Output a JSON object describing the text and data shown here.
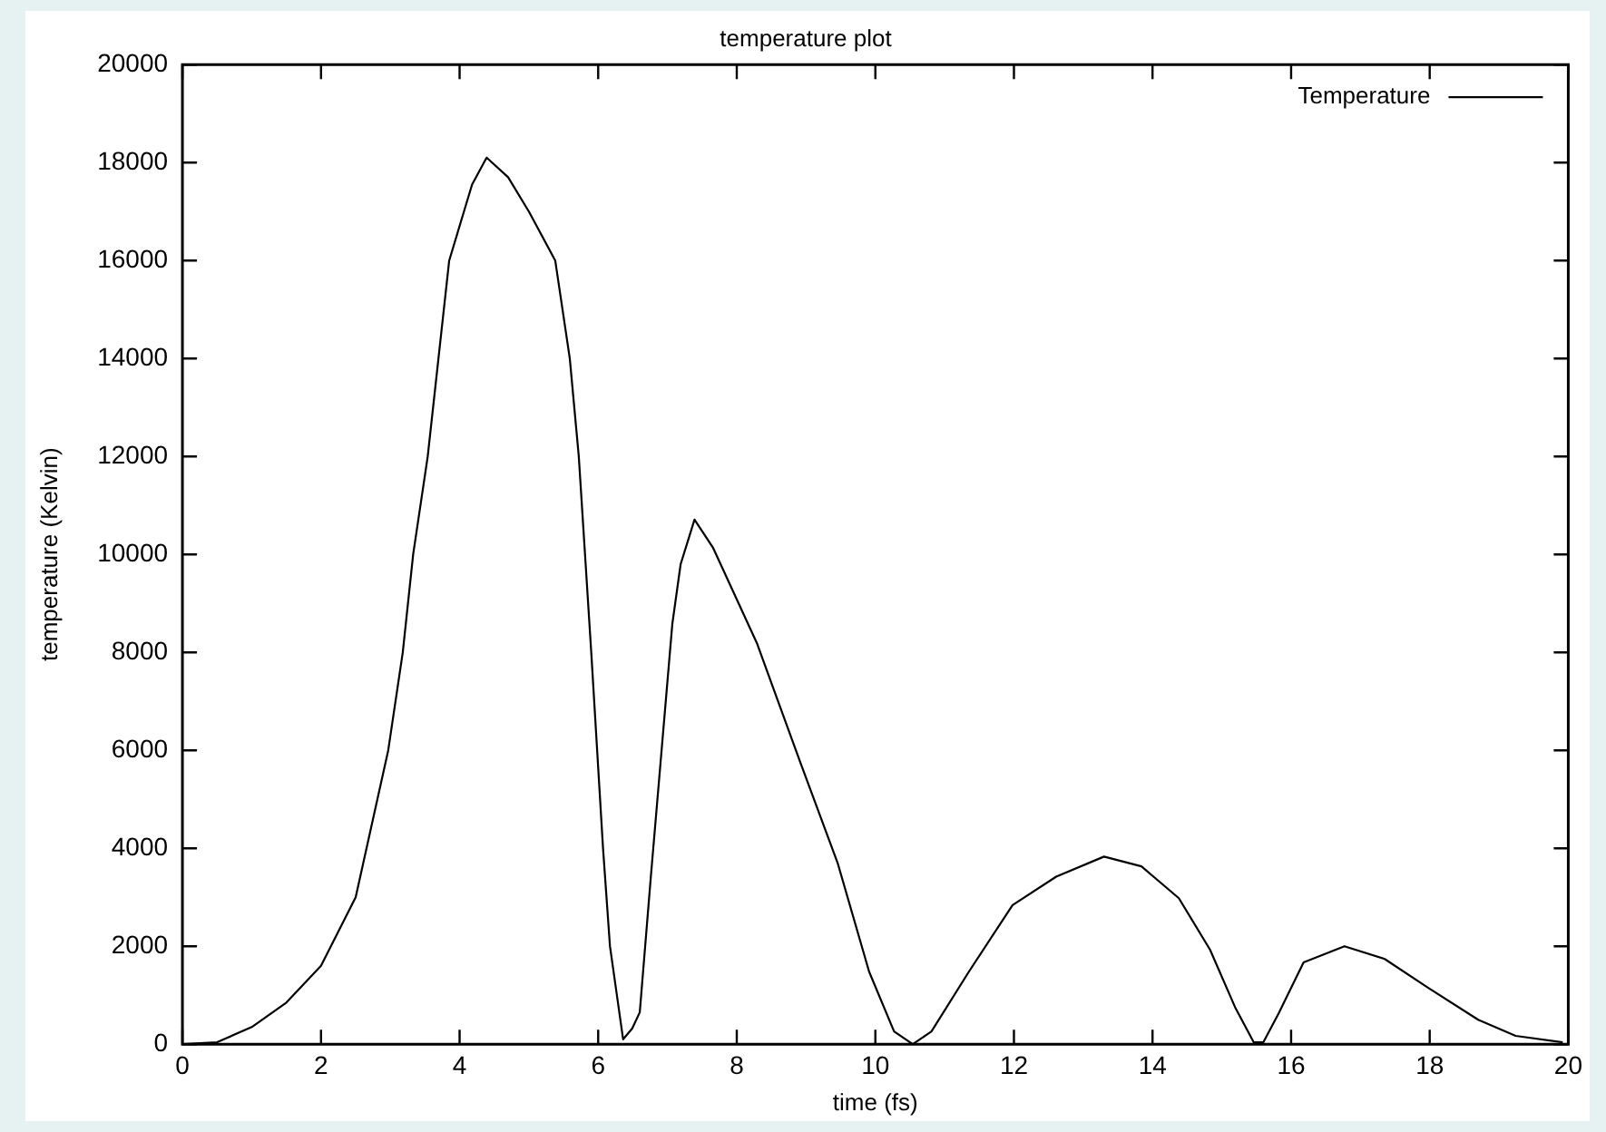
{
  "chart_data": {
    "type": "line",
    "title": "temperature plot",
    "xlabel": "time (fs)",
    "ylabel": "temperature (Kelvin)",
    "xlim": [
      0,
      20
    ],
    "xticks": [
      0,
      2,
      4,
      6,
      8,
      10,
      12,
      14,
      16,
      18,
      20
    ],
    "ylim": [
      0,
      20000
    ],
    "yticks": [
      0,
      2000,
      4000,
      6000,
      8000,
      10000,
      12000,
      14000,
      16000,
      18000,
      20000
    ],
    "grid": false,
    "legend": "top right",
    "marker": "none",
    "line_style": "solid",
    "series": [
      {
        "name": "Temperature",
        "color": "#000000",
        "x": [
          0,
          0.5,
          1,
          1.5,
          2,
          2.5,
          2.97,
          3.18,
          3.33,
          3.54,
          3.85,
          4.18,
          4.39,
          4.7,
          5,
          5.38,
          5.59,
          5.72,
          5.9,
          6.07,
          6.17,
          6.36,
          6.49,
          6.6,
          6.76,
          7.07,
          7.19,
          7.39,
          7.66,
          8.29,
          8.92,
          9.46,
          9.91,
          10.27,
          10.54,
          10.81,
          11.35,
          11.98,
          12.61,
          13.3,
          13.84,
          14.38,
          14.83,
          15.19,
          15.46,
          15.6,
          15.82,
          16.18,
          16.77,
          17.35,
          17.98,
          18.7,
          19.24,
          19.92
        ],
        "values": [
          0,
          40,
          350,
          850,
          1600,
          3000,
          6000,
          8000,
          10000,
          12000,
          16000,
          17550,
          18100,
          17700,
          17000,
          16000,
          14000,
          12000,
          8000,
          4000,
          2000,
          100,
          320,
          650,
          3420,
          8580,
          9800,
          10710,
          10130,
          8190,
          5740,
          3680,
          1480,
          260,
          0,
          260,
          1480,
          2840,
          3420,
          3830,
          3630,
          2980,
          1930,
          760,
          40,
          40,
          630,
          1670,
          2000,
          1740,
          1150,
          500,
          170,
          40
        ]
      }
    ]
  }
}
